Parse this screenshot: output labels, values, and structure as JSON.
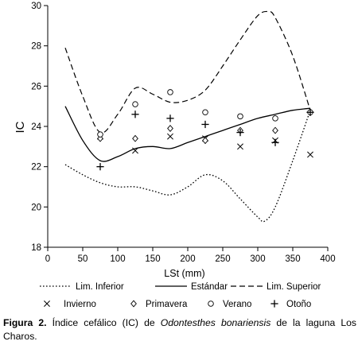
{
  "chart_data": {
    "type": "line",
    "xlabel": "LSt (mm)",
    "ylabel": "IC",
    "xlim": [
      0,
      400
    ],
    "ylim": [
      18,
      30
    ],
    "xticks": [
      0,
      50,
      100,
      150,
      200,
      250,
      300,
      350,
      400
    ],
    "yticks": [
      18,
      20,
      22,
      24,
      26,
      28,
      30
    ],
    "grid": false,
    "legend_position": "bottom",
    "lines": [
      {
        "name": "Lim. Inferior",
        "style": "dotted",
        "x": [
          25,
          50,
          75,
          100,
          125,
          150,
          175,
          200,
          225,
          250,
          275,
          300,
          310,
          325,
          350,
          375
        ],
        "y": [
          22.1,
          21.6,
          21.2,
          21.0,
          21.0,
          20.8,
          20.6,
          21.0,
          21.6,
          21.3,
          20.4,
          19.5,
          19.3,
          20.0,
          22.3,
          24.8
        ]
      },
      {
        "name": "Estándar",
        "style": "solid",
        "x": [
          25,
          50,
          75,
          100,
          125,
          150,
          175,
          200,
          225,
          250,
          275,
          300,
          325,
          350,
          375
        ],
        "y": [
          25.0,
          23.3,
          22.3,
          22.5,
          22.9,
          23.0,
          22.9,
          23.2,
          23.5,
          23.8,
          24.1,
          24.4,
          24.6,
          24.8,
          24.9
        ]
      },
      {
        "name": "Lim. Superior",
        "style": "dashed",
        "x": [
          25,
          50,
          75,
          100,
          125,
          150,
          175,
          200,
          225,
          250,
          275,
          300,
          315,
          325,
          350,
          375
        ],
        "y": [
          27.9,
          25.5,
          23.7,
          24.6,
          25.9,
          25.6,
          25.2,
          25.3,
          25.8,
          27.0,
          28.3,
          29.5,
          29.7,
          29.4,
          27.5,
          24.8
        ]
      }
    ],
    "series": [
      {
        "name": "Invierno",
        "marker": "x",
        "x": [
          75,
          125,
          175,
          225,
          275,
          325,
          375
        ],
        "y": [
          23.5,
          22.8,
          23.5,
          23.4,
          23.0,
          23.3,
          22.6
        ]
      },
      {
        "name": "Primavera",
        "marker": "diamond",
        "x": [
          75,
          125,
          175,
          225,
          275,
          325,
          375
        ],
        "y": [
          23.4,
          23.4,
          23.9,
          23.3,
          23.8,
          23.8,
          24.7
        ]
      },
      {
        "name": "Verano",
        "marker": "circle",
        "x": [
          75,
          125,
          175,
          225,
          275,
          325,
          375
        ],
        "y": [
          23.6,
          25.1,
          25.7,
          24.7,
          24.5,
          24.4,
          24.7
        ]
      },
      {
        "name": "Otoño",
        "marker": "plus",
        "x": [
          75,
          125,
          175,
          225,
          275,
          325,
          375
        ],
        "y": [
          22.0,
          24.6,
          24.4,
          24.1,
          23.7,
          23.2,
          24.7
        ]
      }
    ]
  },
  "caption": {
    "label": "Figura 2.",
    "text_before": " Índice cefálico (IC) de ",
    "species": "Odontesthes bonariensis",
    "text_after": " de la laguna Los Charos."
  }
}
